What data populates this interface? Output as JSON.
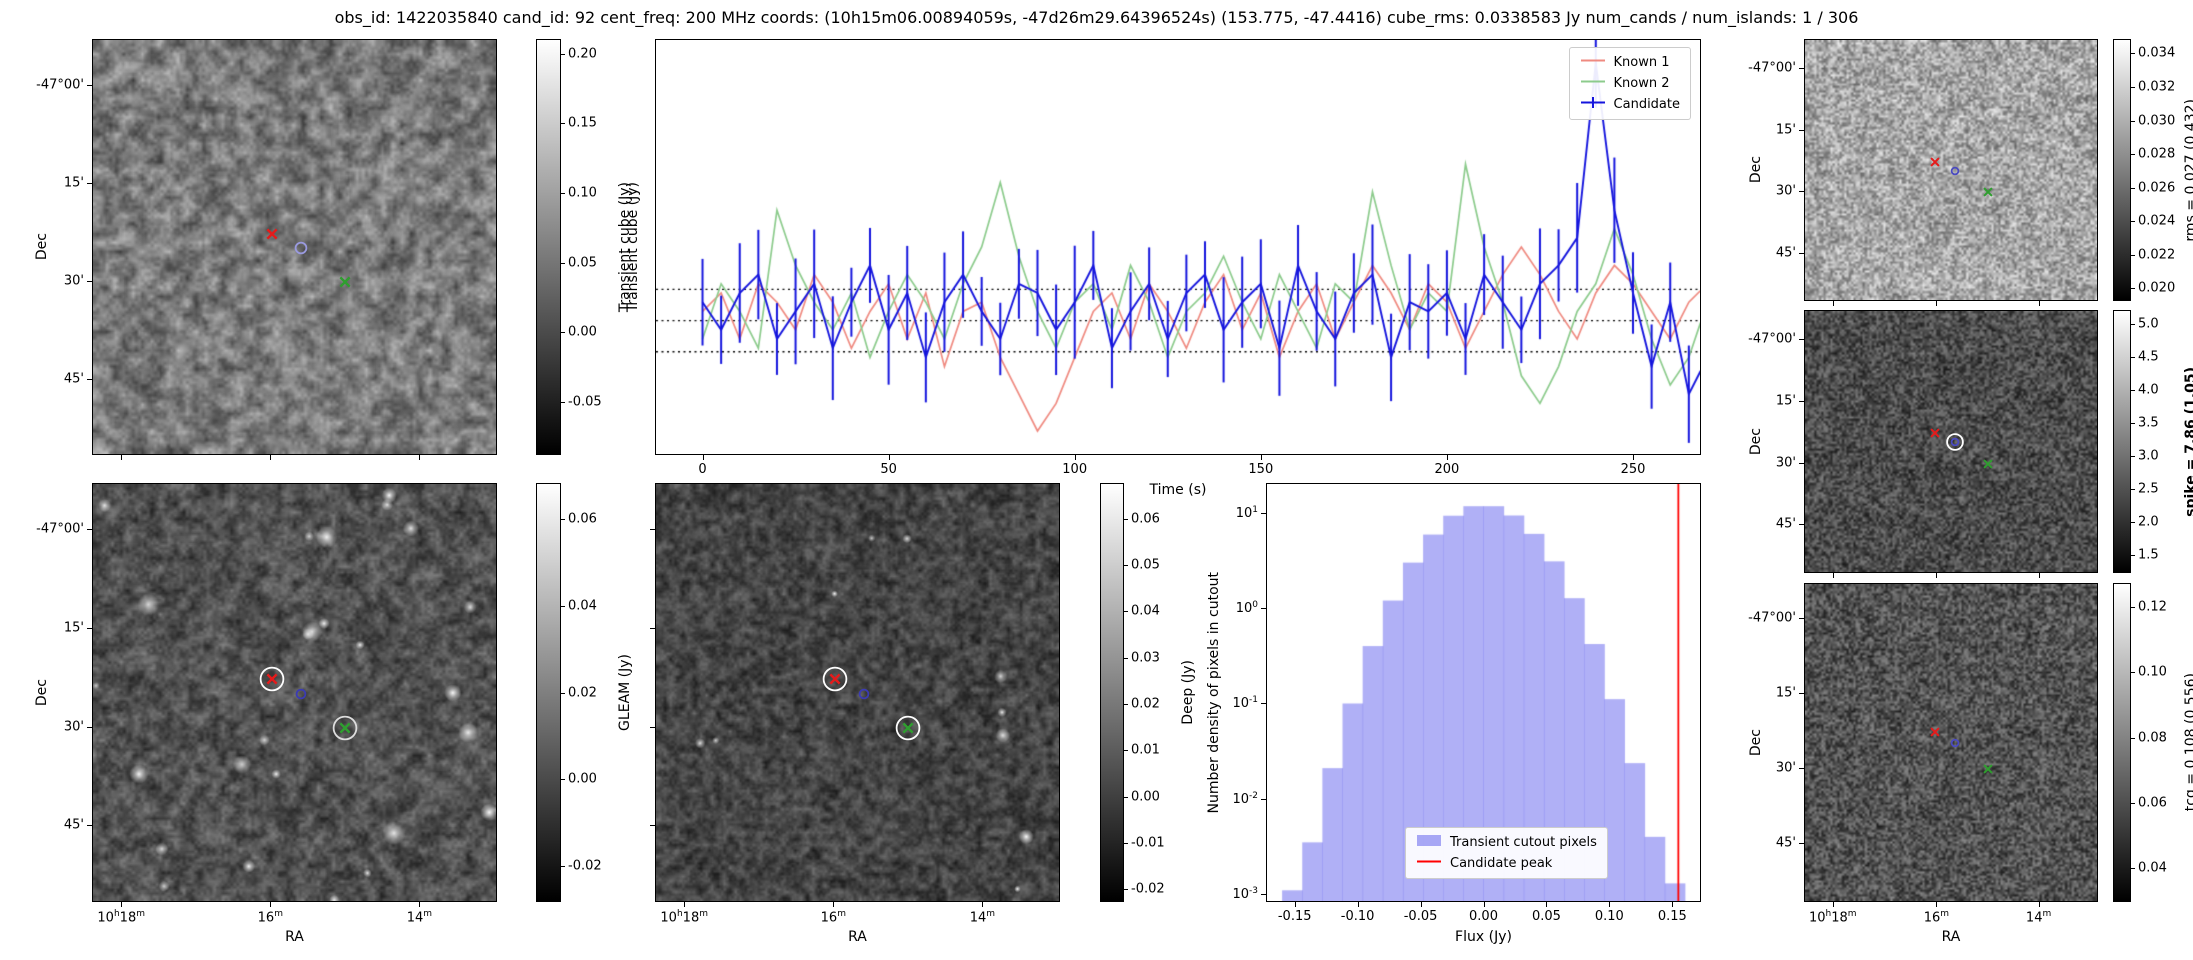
{
  "title": "obs_id: 1422035840 cand_id: 92 cent_freq: 200 MHz coords: (10h15m06.00894059s, -47d26m29.64396524s) (153.775, -47.4416) cube_rms: 0.0338583 Jy num_cands / num_islands: 1 / 306",
  "colors": {
    "known1": "#ef8a80",
    "known2": "#8ccb8c",
    "candidate": "#1414dd",
    "marker_red": "#e51b1b",
    "marker_green": "#2f9e2f",
    "marker_blue": "#4a4ac0",
    "hist_fill": "#7070ee",
    "hist_vline": "#ff0000",
    "hline": "#000000"
  },
  "axes": {
    "dec_label": "Dec",
    "ra_label": "RA",
    "dec_ticks": [
      "-47°00'",
      "15'",
      "30'",
      "45'"
    ],
    "ra_ticks": [
      "10h18m",
      "16m",
      "14m"
    ]
  },
  "colorbars": {
    "transient": {
      "label": "Transient cube (Jy)",
      "ticks": [
        "0.20",
        "0.15",
        "0.10",
        "0.05",
        "0.00",
        "-0.05"
      ]
    },
    "gleam": {
      "label": "GLEAM (Jy)",
      "ticks": [
        "0.06",
        "0.04",
        "0.02",
        "0.00",
        "-0.02"
      ]
    },
    "deep": {
      "label": "Deep (Jy)",
      "ticks": [
        "0.06",
        "0.05",
        "0.04",
        "0.03",
        "0.02",
        "0.01",
        "0.00",
        "-0.01",
        "-0.02"
      ]
    },
    "rms": {
      "label": "rms = 0.027 (0.432)",
      "ticks": [
        "0.034",
        "0.032",
        "0.030",
        "0.028",
        "0.026",
        "0.024",
        "0.022",
        "0.020"
      ]
    },
    "spike": {
      "label": "spike = 7.86 (1.05)",
      "ticks": [
        "5.0",
        "4.5",
        "4.0",
        "3.5",
        "3.0",
        "2.5",
        "2.0",
        "1.5"
      ]
    },
    "tcg": {
      "label": "tcg = 0.108 (0.556)",
      "ticks": [
        "0.12",
        "0.10",
        "0.08",
        "0.06",
        "0.04"
      ]
    }
  },
  "markers": {
    "known1_red": {
      "fx": 0.445,
      "fy": 0.468
    },
    "candidate_blue": {
      "fx": 0.515,
      "fy": 0.503
    },
    "known2_green": {
      "fx": 0.625,
      "fy": 0.585
    }
  },
  "chart_data": [
    {
      "type": "line",
      "title": "",
      "xlabel": "Time (s)",
      "ylabel": "Transient cube (Jy)",
      "xlim": [
        -12.5,
        268
      ],
      "ylim": [
        -0.145,
        0.305
      ],
      "x_ticks": [
        0,
        50,
        100,
        150,
        200,
        250
      ],
      "hlines": [
        0.0338583,
        0.0,
        -0.0338583
      ],
      "hline_style": "dotted",
      "legend_position": "upper right",
      "x": [
        0,
        5,
        10,
        15,
        20,
        25,
        30,
        35,
        40,
        45,
        50,
        55,
        60,
        65,
        70,
        75,
        80,
        85,
        90,
        95,
        100,
        105,
        110,
        115,
        120,
        125,
        130,
        135,
        140,
        145,
        150,
        155,
        160,
        165,
        170,
        175,
        180,
        185,
        190,
        195,
        200,
        205,
        210,
        215,
        220,
        225,
        230,
        235,
        240,
        245,
        250,
        255,
        260,
        265,
        270
      ],
      "series": [
        {
          "name": "Known 1",
          "values": [
            0.01,
            0.03,
            -0.02,
            0.04,
            0.02,
            -0.01,
            0.05,
            0.02,
            -0.03,
            0.01,
            0.04,
            -0.02,
            0.03,
            -0.05,
            0.01,
            0.02,
            -0.04,
            -0.08,
            -0.12,
            -0.09,
            -0.04,
            0.01,
            0.03,
            -0.02,
            0.04,
            0.01,
            -0.03,
            0.02,
            0.05,
            -0.01,
            0.03,
            -0.04,
            0.01,
            0.04,
            -0.02,
            0.02,
            0.06,
            0.03,
            -0.01,
            0.04,
            0.02,
            -0.03,
            0.01,
            0.05,
            0.08,
            0.05,
            0.01,
            -0.02,
            0.03,
            0.06,
            0.04,
            0.01,
            -0.02,
            0.02,
            0.04
          ]
        },
        {
          "name": "Known 2",
          "values": [
            -0.02,
            0.04,
            0.01,
            -0.03,
            0.12,
            0.06,
            0.02,
            -0.01,
            0.03,
            -0.04,
            0.01,
            0.05,
            0.02,
            -0.02,
            0.04,
            0.08,
            0.15,
            0.07,
            0.01,
            -0.03,
            0.02,
            0.04,
            -0.01,
            0.06,
            0.02,
            -0.04,
            0.01,
            0.03,
            0.07,
            0.02,
            -0.02,
            0.05,
            0.01,
            -0.03,
            0.04,
            0.02,
            0.14,
            0.06,
            -0.01,
            0.03,
            0.01,
            0.17,
            0.08,
            0.02,
            -0.06,
            -0.09,
            -0.05,
            0.01,
            0.04,
            0.1,
            0.05,
            -0.02,
            -0.07,
            -0.04,
            0.02
          ]
        },
        {
          "name": "Candidate",
          "yerr_base": 0.036,
          "yerr_jitter": 0.026,
          "values": [
            0.02,
            -0.01,
            0.03,
            0.05,
            -0.02,
            0.01,
            0.04,
            -0.03,
            0.02,
            0.06,
            -0.01,
            0.03,
            -0.04,
            0.02,
            0.05,
            0.01,
            -0.02,
            0.04,
            0.03,
            -0.01,
            0.02,
            0.06,
            -0.03,
            0.01,
            0.04,
            -0.02,
            0.03,
            0.05,
            -0.01,
            0.02,
            0.04,
            -0.03,
            0.06,
            0.01,
            -0.02,
            0.03,
            0.05,
            -0.04,
            0.02,
            0.01,
            0.03,
            -0.02,
            0.05,
            0.02,
            -0.01,
            0.04,
            0.06,
            0.09,
            0.28,
            0.12,
            0.03,
            -0.05,
            0.02,
            -0.08,
            -0.04
          ]
        }
      ]
    },
    {
      "type": "bar",
      "title": "",
      "xlabel": "Flux (Jy)",
      "ylabel": "Number density of pixels in cutout",
      "xlim": [
        -0.172,
        0.172
      ],
      "ylim": [
        0.00085,
        20
      ],
      "yscale": "log",
      "x_ticks": [
        "-0.15",
        "-0.10",
        "-0.05",
        "0.00",
        "0.05",
        "0.10",
        "0.15"
      ],
      "y_tick_exponents": [
        "1",
        "0",
        "-1",
        "-2",
        "-3"
      ],
      "bin_width": 0.016,
      "bin_centers": [
        -0.152,
        -0.136,
        -0.12,
        -0.104,
        -0.088,
        -0.072,
        -0.056,
        -0.04,
        -0.024,
        -0.008,
        0.008,
        0.024,
        0.04,
        0.056,
        0.072,
        0.088,
        0.104,
        0.12,
        0.136,
        0.152
      ],
      "values": [
        0.0011,
        0.0035,
        0.021,
        0.1,
        0.4,
        1.2,
        3.0,
        5.9,
        9.3,
        11.7,
        11.7,
        9.35,
        6.0,
        3.09,
        1.27,
        0.42,
        0.111,
        0.0237,
        0.004,
        0.0013
      ],
      "vline": 0.1548,
      "legend": [
        {
          "label": "Transient cutout pixels",
          "type": "patch"
        },
        {
          "label": "Candidate peak",
          "type": "line"
        }
      ]
    }
  ]
}
